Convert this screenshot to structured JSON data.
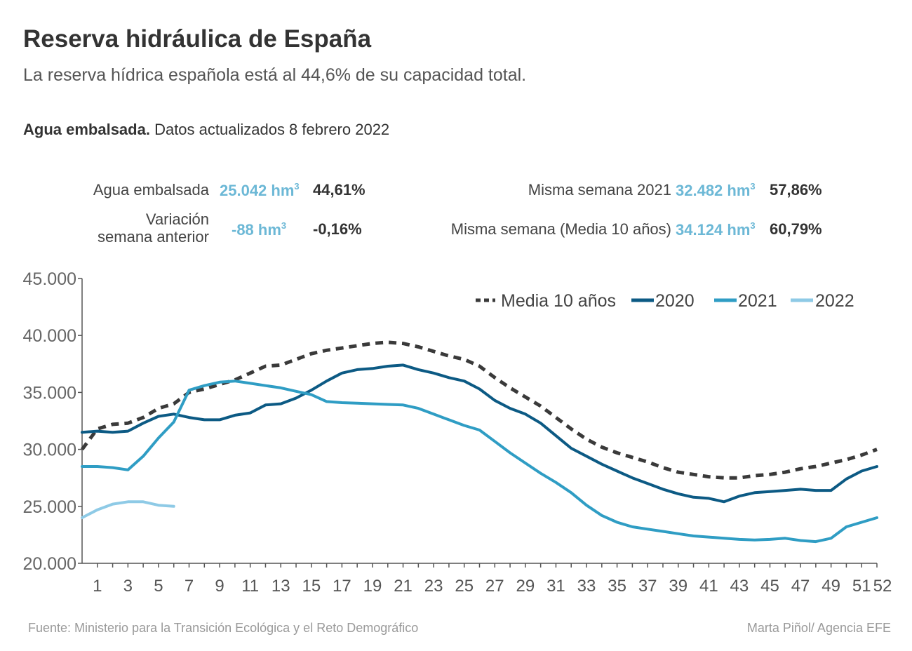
{
  "header": {
    "title": "Reserva hidráulica de España",
    "subtitle": "La reserva hídrica española está al 44,6% de su capacidad total.",
    "section_bold": "Agua embalsada.",
    "section_rest": " Datos actualizados 8 febrero 2022"
  },
  "stats": {
    "agua_label": "Agua embalsada",
    "agua_value": "25.042 hm",
    "agua_pct": "44,61%",
    "var_label_1": "Variación",
    "var_label_2": "semana anterior",
    "var_value": "-88 hm",
    "var_pct": "-0,16%",
    "s2021_label": "Misma semana 2021",
    "s2021_value": "32.482 hm",
    "s2021_pct": "57,86%",
    "media_label": "Misma semana (Media 10 años)",
    "media_value": "34.124 hm",
    "media_pct": "60,79%",
    "unit_sup": "3"
  },
  "footer": {
    "source": "Fuente:  Ministerio para la Transición Ecológica y el Reto Demográfico",
    "author": "Marta Piñol/ Agencia EFE"
  },
  "colors": {
    "media": "#3a3a3a",
    "s2020": "#0c5a84",
    "s2021": "#2f9dc4",
    "s2022": "#8ecae6",
    "axis": "#555555",
    "value_text": "#6cb8d6"
  },
  "chart_data": {
    "type": "line",
    "xlim": [
      0,
      52
    ],
    "ylim": [
      20000,
      45000
    ],
    "yticks": [
      20000,
      25000,
      30000,
      35000,
      40000,
      45000
    ],
    "ytick_labels": [
      "20.000",
      "25.000",
      "30.000",
      "35.000",
      "40.000",
      "45.000"
    ],
    "xticks": [
      1,
      3,
      5,
      7,
      9,
      11,
      13,
      15,
      17,
      19,
      21,
      23,
      25,
      27,
      29,
      31,
      33,
      35,
      37,
      39,
      41,
      43,
      45,
      47,
      49,
      51,
      52
    ],
    "legend_position": "top-right",
    "series": [
      {
        "name": "Media 10 años",
        "style": "dashed",
        "x": [
          0,
          1,
          2,
          3,
          4,
          5,
          6,
          7,
          8,
          9,
          10,
          11,
          12,
          13,
          14,
          15,
          16,
          17,
          18,
          19,
          20,
          21,
          22,
          23,
          24,
          25,
          26,
          27,
          28,
          29,
          30,
          31,
          32,
          33,
          34,
          35,
          36,
          37,
          38,
          39,
          40,
          41,
          42,
          43,
          44,
          45,
          46,
          47,
          48,
          49,
          50,
          51,
          52
        ],
        "values": [
          30000,
          31800,
          32200,
          32300,
          32800,
          33600,
          34000,
          35000,
          35300,
          35700,
          36100,
          36700,
          37300,
          37400,
          37900,
          38400,
          38700,
          38900,
          39100,
          39300,
          39400,
          39300,
          39000,
          38600,
          38200,
          37900,
          37300,
          36300,
          35400,
          34600,
          33800,
          32800,
          31800,
          30900,
          30200,
          29700,
          29300,
          28900,
          28400,
          28000,
          27800,
          27600,
          27500,
          27500,
          27700,
          27800,
          28000,
          28300,
          28500,
          28800,
          29100,
          29500,
          30000
        ]
      },
      {
        "name": "2020",
        "style": "solid",
        "x": [
          0,
          1,
          2,
          3,
          4,
          5,
          6,
          7,
          8,
          9,
          10,
          11,
          12,
          13,
          14,
          15,
          16,
          17,
          18,
          19,
          20,
          21,
          22,
          23,
          24,
          25,
          26,
          27,
          28,
          29,
          30,
          31,
          32,
          33,
          34,
          35,
          36,
          37,
          38,
          39,
          40,
          41,
          42,
          43,
          44,
          45,
          46,
          47,
          48,
          49,
          50,
          51,
          52
        ],
        "values": [
          31500,
          31600,
          31500,
          31600,
          32300,
          32900,
          33100,
          32800,
          32600,
          32600,
          33000,
          33200,
          33900,
          34000,
          34500,
          35200,
          36000,
          36700,
          37000,
          37100,
          37300,
          37400,
          37000,
          36700,
          36300,
          36000,
          35300,
          34300,
          33600,
          33100,
          32300,
          31200,
          30100,
          29400,
          28700,
          28100,
          27500,
          27000,
          26500,
          26100,
          25800,
          25700,
          25400,
          25900,
          26200,
          26300,
          26400,
          26500,
          26400,
          26400,
          27400,
          28100,
          28500
        ]
      },
      {
        "name": "2021",
        "style": "solid",
        "x": [
          0,
          1,
          2,
          3,
          4,
          5,
          6,
          7,
          8,
          9,
          10,
          11,
          12,
          13,
          14,
          15,
          16,
          17,
          18,
          19,
          20,
          21,
          22,
          23,
          24,
          25,
          26,
          27,
          28,
          29,
          30,
          31,
          32,
          33,
          34,
          35,
          36,
          37,
          38,
          39,
          40,
          41,
          42,
          43,
          44,
          45,
          46,
          47,
          48,
          49,
          50,
          51,
          52
        ],
        "values": [
          28500,
          28500,
          28400,
          28200,
          29400,
          31000,
          32400,
          35200,
          35600,
          35900,
          36000,
          35800,
          35600,
          35400,
          35100,
          34800,
          34200,
          34100,
          34050,
          34000,
          33950,
          33900,
          33600,
          33100,
          32600,
          32100,
          31700,
          30700,
          29700,
          28800,
          27900,
          27100,
          26200,
          25100,
          24200,
          23600,
          23200,
          23000,
          22800,
          22600,
          22400,
          22300,
          22200,
          22100,
          22050,
          22100,
          22200,
          22000,
          21900,
          22200,
          23200,
          23600,
          24000
        ]
      },
      {
        "name": "2022",
        "style": "solid",
        "x": [
          0,
          1,
          2,
          3,
          4,
          5,
          6
        ],
        "values": [
          24000,
          24700,
          25200,
          25400,
          25400,
          25100,
          25000
        ]
      }
    ]
  }
}
